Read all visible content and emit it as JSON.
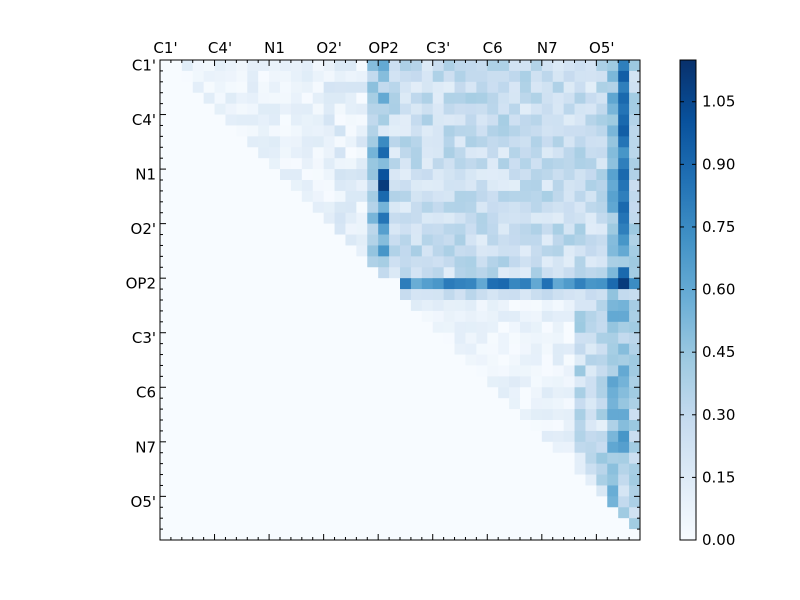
{
  "chart_data": {
    "type": "heatmap",
    "title": "",
    "xlabel": "",
    "ylabel": "",
    "grid": false,
    "n": 44,
    "tick_labels": [
      "C1'",
      "C4'",
      "N1",
      "O2'",
      "OP2",
      "C3'",
      "C6",
      "N7",
      "O5'"
    ],
    "tick_index": [
      0,
      5,
      10,
      15,
      20,
      25,
      30,
      35,
      40
    ],
    "colormap": "Blues",
    "colormap_low": "#f7fbff",
    "colormap_high": "#08306b",
    "colorbar": {
      "vmin": 0.0,
      "vmax": 1.15,
      "ticks": [
        "0.00",
        "0.15",
        "0.30",
        "0.45",
        "0.60",
        "0.75",
        "0.90",
        "1.05"
      ],
      "position": "right"
    },
    "zero_below_diagonal": true,
    "approx_matrix_note_rows": [
      {
        "row": 20,
        "from_col": 22,
        "level_range": [
          0.6,
          0.9
        ]
      },
      {
        "row": 21,
        "from_col": 22,
        "level_range": [
          0.2,
          0.35
        ]
      }
    ],
    "approx_strong_columns": [
      {
        "col": 20,
        "rows": [
          0,
          19
        ],
        "levels": [
          0.6,
          0.5,
          0.3,
          0.6,
          0.35,
          0.4,
          0.15,
          0.75,
          0.9,
          0.5,
          1.0,
          1.1,
          0.9,
          0.55,
          0.85,
          0.65,
          0.5,
          0.7,
          0.4,
          0.3
        ]
      },
      {
        "col": 42,
        "rows": [
          0,
          40
        ],
        "levels": [
          0.8,
          0.95,
          0.8,
          0.9,
          0.85,
          0.9,
          0.95,
          0.85,
          0.7,
          0.8,
          0.9,
          0.85,
          0.8,
          0.9,
          0.85,
          0.8,
          0.7,
          0.6,
          0.4,
          0.9,
          1.1,
          0.3,
          0.55,
          0.6,
          0.4,
          0.3,
          0.5,
          0.4,
          0.6,
          0.55,
          0.5,
          0.45,
          0.6,
          0.5,
          0.7,
          0.65,
          0.4,
          0.35,
          0.3,
          0.2,
          0.3
        ]
      }
    ]
  }
}
